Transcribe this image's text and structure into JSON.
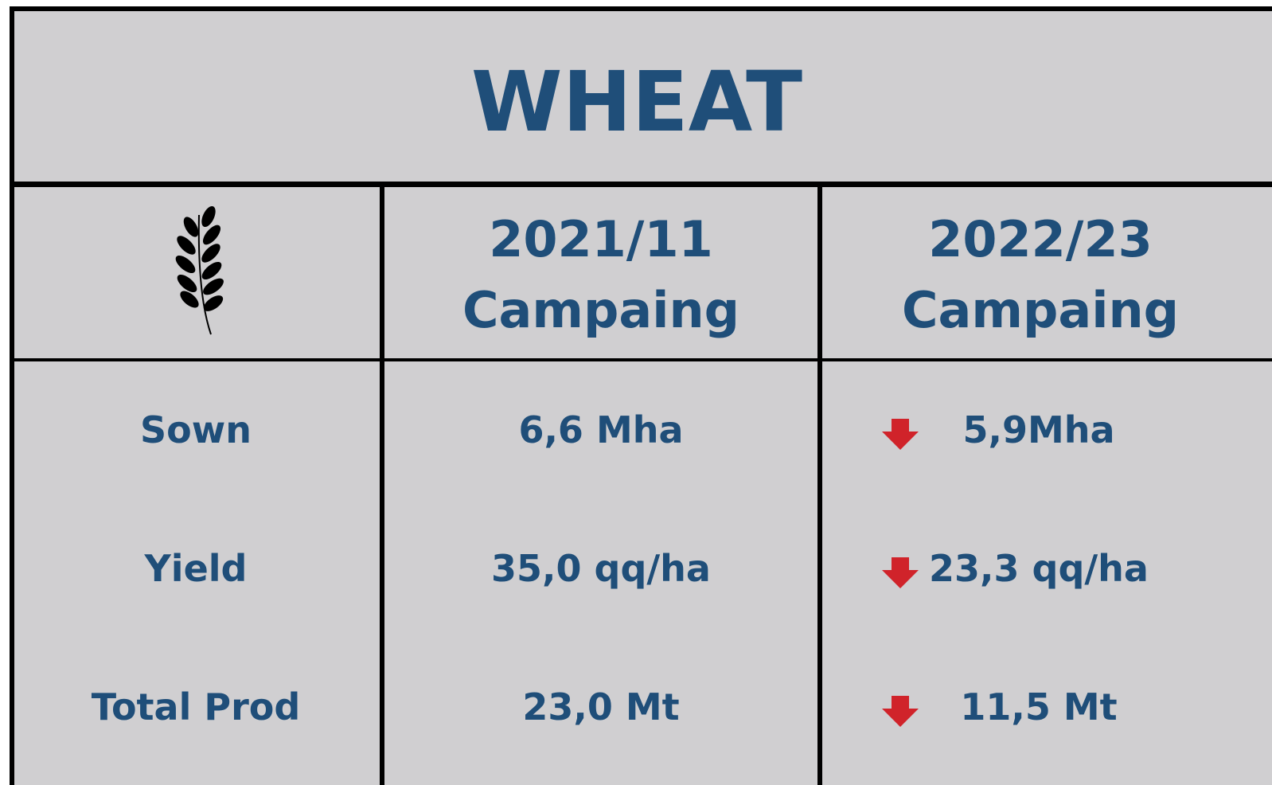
{
  "title": "WHEAT",
  "table": {
    "headers": [
      {
        "lines": [
          "2021/11",
          "Campaing"
        ]
      },
      {
        "lines": [
          "2022/23",
          "Campaing"
        ]
      }
    ],
    "rows": [
      [
        "Sown",
        "6,6 Mha",
        "5,9Mha"
      ],
      [
        "Yield",
        "35,0 qq/ha",
        "23,3 qq/ha"
      ],
      [
        "Total Prod",
        "23,0 Mt",
        "11,5 Mt"
      ]
    ]
  }
}
